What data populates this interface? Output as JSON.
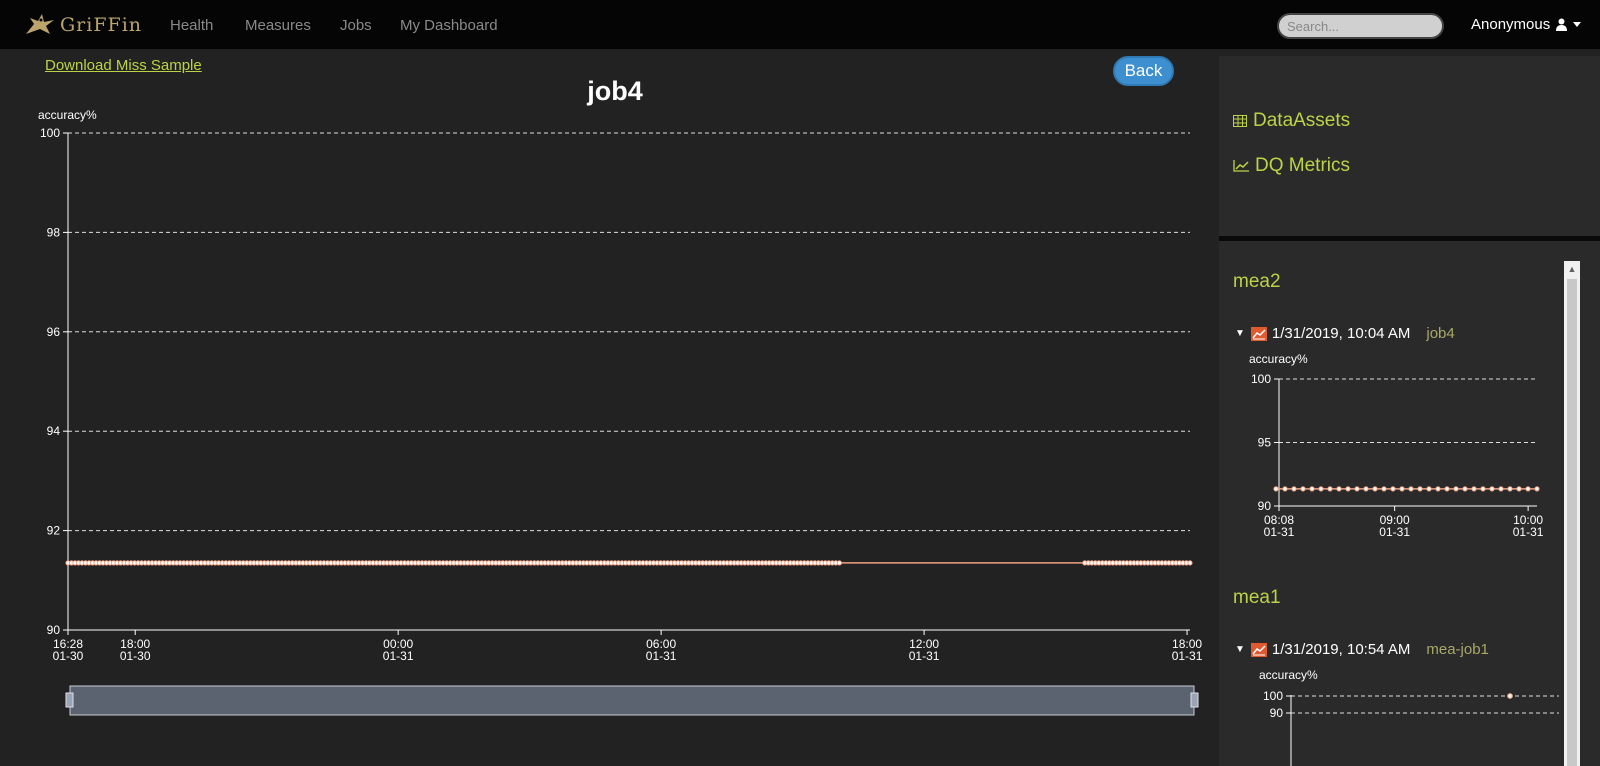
{
  "nav": {
    "brand": "GriFFin",
    "items": [
      "Health",
      "Measures",
      "Jobs",
      "My Dashboard"
    ],
    "search_placeholder": "Search...",
    "user": "Anonymous"
  },
  "download_link": "Download Miss Sample",
  "page_title": "job4",
  "back_label": "Back",
  "colors": {
    "accent": "#bcd347",
    "series": "#f0a080",
    "button": "#3d8fd0"
  },
  "chart_data": [
    {
      "type": "line",
      "ylabel": "accuracy%",
      "ylim": [
        90,
        100
      ],
      "yticks": [
        "100",
        "98",
        "96",
        "94",
        "92",
        "90"
      ],
      "xticks": [
        {
          "time": "16:28",
          "date": "01-30",
          "hours": 0
        },
        {
          "time": "18:00",
          "date": "01-30",
          "hours": 1.533
        },
        {
          "time": "00:00",
          "date": "01-31",
          "hours": 7.533
        },
        {
          "time": "06:00",
          "date": "01-31",
          "hours": 13.533
        },
        {
          "time": "12:00",
          "date": "01-31",
          "hours": 19.533
        },
        {
          "time": "18:00",
          "date": "01-31",
          "hours": 25.533
        }
      ],
      "x_range_hours": [
        0,
        25.6
      ],
      "series": [
        {
          "name": "accuracy",
          "value": 91.35,
          "segments": [
            {
              "from_hours": 0,
              "to_hours": 17.6
            },
            {
              "from_hours": 23.2,
              "to_hours": 25.6
            }
          ],
          "point_interval_hours": 0.08
        }
      ]
    },
    {
      "type": "line",
      "ylabel": "accuracy%",
      "ylim": [
        90,
        100
      ],
      "yticks": [
        "100",
        "95",
        "90"
      ],
      "xticks": [
        {
          "time": "08:08",
          "date": "01-31",
          "minutes": 0
        },
        {
          "time": "09:00",
          "date": "01-31",
          "minutes": 52
        },
        {
          "time": "10:00",
          "date": "01-31",
          "minutes": 112
        }
      ],
      "x_range_minutes": [
        0,
        116
      ],
      "series": [
        {
          "name": "accuracy",
          "value": 91.35,
          "point_count": 30
        }
      ]
    },
    {
      "type": "line",
      "ylabel": "accuracy%",
      "yticks": [
        "100",
        "90"
      ],
      "series": [
        {
          "name": "accuracy",
          "value": 100,
          "point_count": 1
        }
      ]
    }
  ],
  "sidebar": {
    "links": [
      {
        "icon": "table-icon",
        "label": "DataAssets"
      },
      {
        "icon": "line-chart-icon",
        "label": "DQ Metrics"
      }
    ],
    "measures": [
      {
        "title": "mea2",
        "timestamp": "1/31/2019, 10:04 AM",
        "job": "job4"
      },
      {
        "title": "mea1",
        "timestamp": "1/31/2019, 10:54 AM",
        "job": "mea-job1"
      }
    ]
  }
}
